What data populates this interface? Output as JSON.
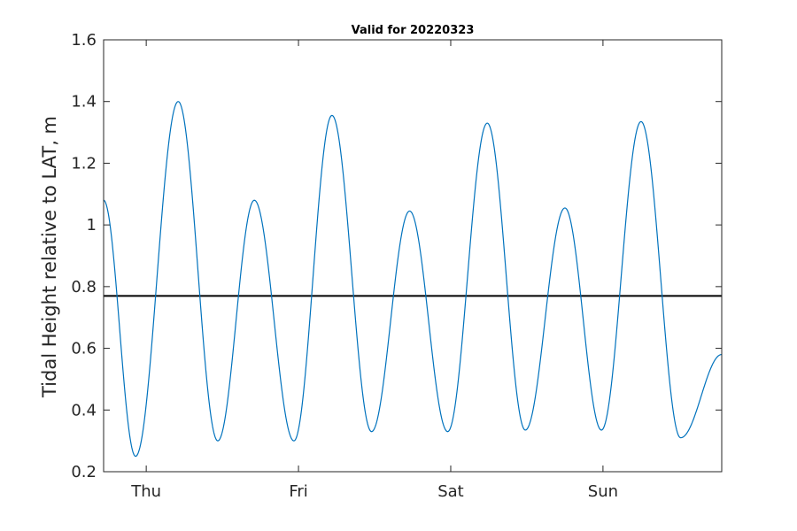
{
  "chart_data": {
    "type": "line",
    "title": "Valid for 20220323",
    "xlabel": "",
    "ylabel": "Tidal Height relative to LAT, m",
    "ylim": [
      0.2,
      1.6
    ],
    "yticks": [
      0.2,
      0.4,
      0.6,
      0.8,
      1.0,
      1.2,
      1.4,
      1.6
    ],
    "ytick_labels": [
      "0.2",
      "0.4",
      "0.6",
      "0.8",
      "1",
      "1.2",
      "1.4",
      "1.6"
    ],
    "x_unit": "days",
    "xlim": [
      -0.28,
      3.78
    ],
    "xticks": [
      0,
      1,
      2,
      3
    ],
    "xtick_labels": [
      "Thu",
      "Fri",
      "Sat",
      "Sun"
    ],
    "grid": false,
    "reference_line": {
      "y": 0.77,
      "color": "#000000"
    },
    "series": [
      {
        "color": "#0072bd",
        "extrema_x": [
          -0.28,
          -0.07,
          0.21,
          0.47,
          0.71,
          0.97,
          1.22,
          1.48,
          1.73,
          1.98,
          2.24,
          2.49,
          2.75,
          2.99,
          3.25,
          3.51,
          3.78
        ],
        "extrema_y": [
          1.08,
          0.25,
          1.4,
          0.3,
          1.08,
          0.3,
          1.355,
          0.33,
          1.045,
          0.33,
          1.33,
          0.335,
          1.055,
          0.335,
          1.335,
          0.31,
          0.58
        ]
      }
    ]
  }
}
